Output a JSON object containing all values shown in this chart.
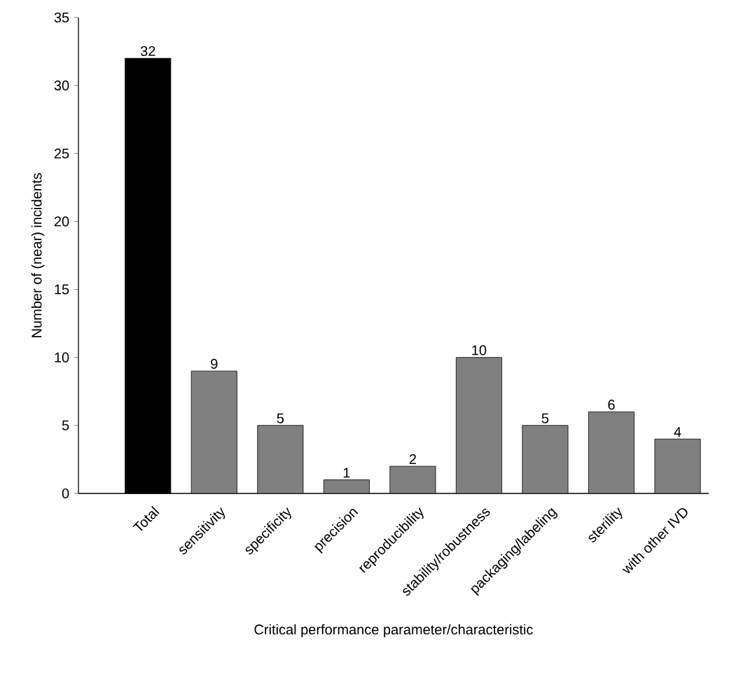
{
  "chart_data": {
    "type": "bar",
    "xlabel": "Critical performance parameter/characteristic",
    "ylabel": "Number of (near) incidents",
    "categories": [
      "Total",
      "sensitivity",
      "specificity",
      "precision",
      "reproducibility",
      "stability/robustness",
      "packaging/labeling",
      "sterility",
      "with other IVD"
    ],
    "values": [
      32,
      9,
      5,
      1,
      2,
      10,
      5,
      6,
      4
    ],
    "colors": [
      "#000000",
      "#808080",
      "#808080",
      "#808080",
      "#808080",
      "#808080",
      "#808080",
      "#808080",
      "#808080"
    ],
    "ylim": [
      0,
      35
    ],
    "yticks": [
      0,
      5,
      10,
      15,
      20,
      25,
      30,
      35
    ],
    "data_labels": true,
    "grid": false
  }
}
